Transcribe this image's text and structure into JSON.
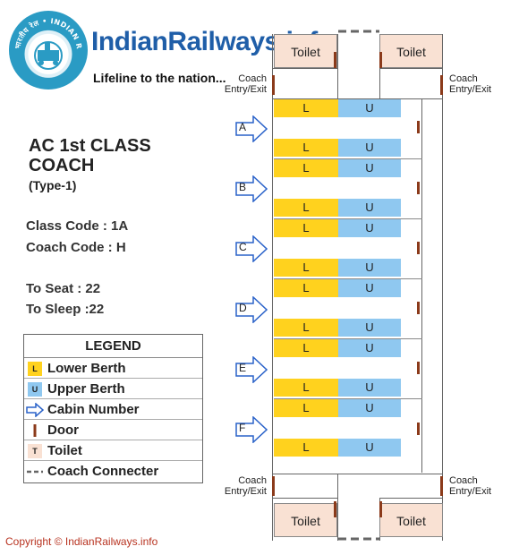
{
  "header": {
    "logo_text": "भारतीय रेल • INDIAN RAILWAYS",
    "site_title": "IndianRailways.info",
    "tagline": "Lifeline to the nation..."
  },
  "coach_info": {
    "title_line1": "AC 1st CLASS",
    "title_line2": "COACH",
    "subtitle": "(Type-1)",
    "class_code": "Class Code : 1A",
    "coach_code": "Coach Code : H",
    "to_seat": "To Seat : 22",
    "to_sleep": "To Sleep :22"
  },
  "legend": {
    "title": "LEGEND",
    "items": [
      {
        "symbol": "L",
        "label": "Lower Berth",
        "color": "#ffd21e"
      },
      {
        "symbol": "U",
        "label": "Upper Berth",
        "color": "#8fc8f0"
      },
      {
        "symbol": "",
        "label": "Cabin Number",
        "icon": "arrow-right-icon"
      },
      {
        "symbol": "",
        "label": "Door",
        "icon": "door-icon",
        "color": "#8b3a1a"
      },
      {
        "symbol": "T",
        "label": "Toilet",
        "color": "#f9e1d3"
      },
      {
        "symbol": "",
        "label": "Coach Connecter",
        "icon": "dashed-line-icon"
      }
    ]
  },
  "diagram": {
    "toilet_label": "Toilet",
    "entry_exit_line1": "Coach",
    "entry_exit_line2": "Entry/Exit",
    "cabins": [
      "A",
      "B",
      "C",
      "D",
      "E",
      "F"
    ],
    "lower_label": "L",
    "upper_label": "U"
  },
  "colors": {
    "brand_blue": "#1f5ea8",
    "lower_berth": "#ffd21e",
    "upper_berth": "#8fc8f0",
    "toilet": "#f9e1d3",
    "door": "#8b3a1a",
    "copyright": "#b83320"
  },
  "footer": {
    "copyright": "Copyright © IndianRailways.info"
  }
}
